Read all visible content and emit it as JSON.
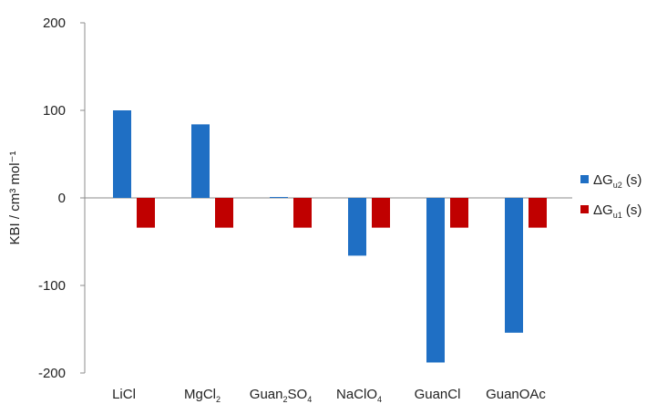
{
  "chart_data": {
    "type": "bar",
    "title": "",
    "xlabel": "",
    "ylabel": "KBI / cm³ mol⁻¹",
    "ylim": [
      -200,
      200
    ],
    "yticks": [
      200,
      100,
      0,
      -100,
      -200
    ],
    "grid": false,
    "legend_position": "right",
    "categories": [
      {
        "base": "LiCl",
        "parts": [
          {
            "t": "LiCl",
            "sub": false
          }
        ]
      },
      {
        "base": "MgCl2",
        "parts": [
          {
            "t": "MgCl",
            "sub": false
          },
          {
            "t": "2",
            "sub": true
          }
        ]
      },
      {
        "base": "Guan2SO4",
        "parts": [
          {
            "t": "Guan",
            "sub": false
          },
          {
            "t": "2",
            "sub": true
          },
          {
            "t": "SO",
            "sub": false
          },
          {
            "t": "4",
            "sub": true
          }
        ]
      },
      {
        "base": "NaClO4",
        "parts": [
          {
            "t": "NaClO",
            "sub": false
          },
          {
            "t": "4",
            "sub": true
          }
        ]
      },
      {
        "base": "GuanCl",
        "parts": [
          {
            "t": "GuanCl",
            "sub": false
          }
        ]
      },
      {
        "base": "GuanOAc",
        "parts": [
          {
            "t": "GuanOAc",
            "sub": false
          }
        ]
      }
    ],
    "series": [
      {
        "name": "ΔGu2 (s)",
        "name_main": "ΔG",
        "name_sub": "u2",
        "name_tail": " (s)",
        "color": "#1f6fc4",
        "values": [
          100,
          84,
          1,
          -66,
          -188,
          -154
        ]
      },
      {
        "name": "ΔGu1 (s)",
        "name_main": "ΔG",
        "name_sub": "u1",
        "name_tail": " (s)",
        "color": "#c00000",
        "values": [
          -34,
          -34,
          -34,
          -34,
          -34,
          -34
        ]
      }
    ]
  }
}
